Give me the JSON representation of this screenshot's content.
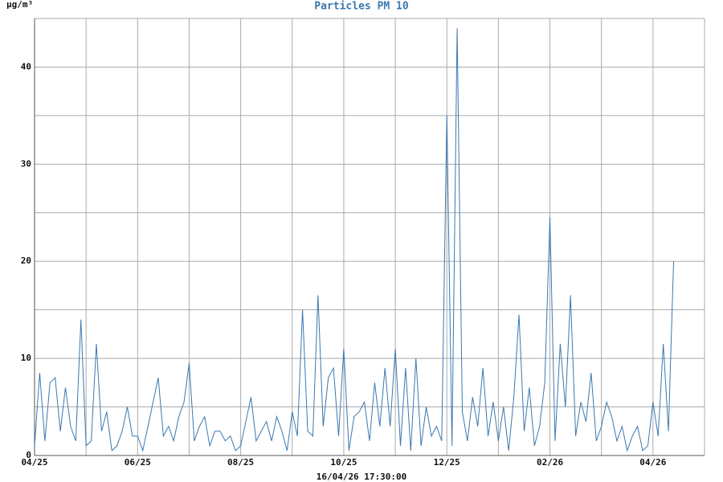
{
  "chart_data": {
    "type": "line",
    "title": "Particles PM 10",
    "y_label": "µg/m³",
    "x_label": "16/04/26 17:30:00",
    "color": "#3b78b0",
    "title_color": "#3b78b0",
    "grid": true,
    "ylim": [
      0,
      45
    ],
    "yticks": [
      0,
      {
        "value": 5,
        "label": null
      },
      10,
      {
        "value": 15,
        "label": null
      },
      20,
      {
        "value": 25,
        "label": null
      },
      30,
      {
        "value": 35,
        "label": null
      },
      40,
      {
        "value": 45,
        "label": null
      }
    ],
    "xticks": [
      "04/25",
      "06/25",
      "08/25",
      "10/25",
      "12/25",
      "02/26",
      "04/26"
    ],
    "x": [
      "04/25",
      "04/25",
      "04/25",
      "04/25",
      "04/25",
      "04/25",
      "04/25",
      "04/25",
      "04/25",
      "04/25",
      "05/25",
      "05/25",
      "05/25",
      "05/25",
      "05/25",
      "05/25",
      "05/25",
      "05/25",
      "05/25",
      "05/25",
      "06/25",
      "06/25",
      "06/25",
      "06/25",
      "06/25",
      "06/25",
      "06/25",
      "06/25",
      "06/25",
      "06/25",
      "07/25",
      "07/25",
      "07/25",
      "07/25",
      "07/25",
      "07/25",
      "07/25",
      "07/25",
      "07/25",
      "07/25",
      "08/25",
      "08/25",
      "08/25",
      "08/25",
      "08/25",
      "08/25",
      "08/25",
      "08/25",
      "08/25",
      "08/25",
      "09/25",
      "09/25",
      "09/25",
      "09/25",
      "09/25",
      "09/25",
      "09/25",
      "09/25",
      "09/25",
      "09/25",
      "10/25",
      "10/25",
      "10/25",
      "10/25",
      "10/25",
      "10/25",
      "10/25",
      "10/25",
      "10/25",
      "10/25",
      "11/25",
      "11/25",
      "11/25",
      "11/25",
      "11/25",
      "11/25",
      "11/25",
      "11/25",
      "11/25",
      "11/25",
      "12/25",
      "12/25",
      "12/25",
      "12/25",
      "12/25",
      "12/25",
      "12/25",
      "12/25",
      "12/25",
      "12/25",
      "01/26",
      "01/26",
      "01/26",
      "01/26",
      "01/26",
      "01/26",
      "01/26",
      "01/26",
      "01/26",
      "01/26",
      "02/26",
      "02/26",
      "02/26",
      "02/26",
      "02/26",
      "02/26",
      "02/26",
      "02/26",
      "02/26",
      "02/26",
      "03/26",
      "03/26",
      "03/26",
      "03/26",
      "03/26",
      "03/26",
      "03/26",
      "03/26",
      "03/26",
      "03/26",
      "04/26",
      "04/26",
      "04/26",
      "04/26",
      "04/26"
    ],
    "values": [
      1,
      8.5,
      1.5,
      7.5,
      8,
      2.5,
      7,
      3,
      1.5,
      14,
      1,
      1.5,
      11.5,
      2.5,
      4.5,
      0.5,
      1,
      2.5,
      5,
      2,
      2,
      0.5,
      3,
      5.5,
      8,
      2,
      3,
      1.5,
      4,
      5.5,
      9.5,
      1.5,
      3,
      4,
      1,
      2.5,
      2.5,
      1.5,
      2,
      0.5,
      1,
      3.5,
      6,
      1.5,
      2.5,
      3.5,
      1.5,
      4,
      2.5,
      0.5,
      4.5,
      2,
      15,
      2.5,
      2,
      16.5,
      3,
      8,
      9,
      2,
      11,
      0.5,
      4,
      4.5,
      5.5,
      1.5,
      7.5,
      3,
      9,
      3,
      11,
      1,
      9,
      0.5,
      10,
      1,
      5,
      2,
      3,
      1.5,
      35,
      1,
      44,
      4.5,
      1.5,
      6,
      3,
      9,
      2,
      5.5,
      1.5,
      5,
      0.5,
      6,
      14.5,
      2.5,
      7,
      1,
      3,
      7.5,
      24.5,
      1.5,
      11.5,
      5,
      16.5,
      2,
      5.5,
      3.5,
      8.5,
      1.5,
      3,
      5.5,
      4,
      1.5,
      3,
      0.5,
      2,
      3,
      0.5,
      1,
      5.5,
      2,
      11.5,
      2.5,
      20
    ]
  }
}
